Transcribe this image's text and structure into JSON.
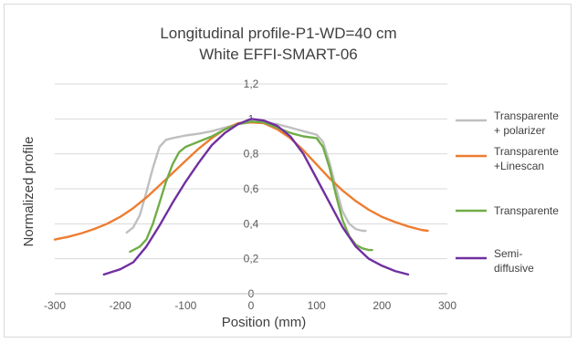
{
  "chart_data": {
    "type": "line",
    "title": [
      "Longitudinal profile-P1-WD=40 cm",
      "White EFFI-SMART-06"
    ],
    "xlabel": "Position (mm)",
    "ylabel": "Normalized profile",
    "xlim": [
      -300,
      300
    ],
    "ylim": [
      0,
      1.2
    ],
    "xticks": [
      -300,
      -200,
      -100,
      0,
      100,
      200,
      300
    ],
    "xtick_labels": [
      "-300",
      "-200",
      "-100",
      "0",
      "100",
      "200",
      "300"
    ],
    "yticks": [
      0,
      0.2,
      0.4,
      0.6,
      0.8,
      1,
      1.2
    ],
    "ytick_labels": [
      "0",
      "0,2",
      "0,4",
      "0,6",
      "0,8",
      "1",
      "1,2"
    ],
    "grid": "horizontal",
    "legend_position": "right",
    "series": [
      {
        "name": "Transparente + polarizer",
        "legend_lines": [
          "Transparente",
          "+ polarizer"
        ],
        "color": "#bfbfbf",
        "x": [
          -190,
          -180,
          -170,
          -160,
          -150,
          -140,
          -130,
          -120,
          -100,
          -80,
          -60,
          -40,
          -20,
          0,
          20,
          40,
          60,
          80,
          100,
          110,
          120,
          130,
          140,
          150,
          160,
          170,
          175
        ],
        "y": [
          0.35,
          0.38,
          0.45,
          0.58,
          0.72,
          0.84,
          0.88,
          0.89,
          0.905,
          0.915,
          0.93,
          0.95,
          0.97,
          0.98,
          0.98,
          0.97,
          0.95,
          0.93,
          0.91,
          0.87,
          0.75,
          0.6,
          0.47,
          0.4,
          0.37,
          0.36,
          0.36
        ]
      },
      {
        "name": "Transparente +Linescan",
        "legend_lines": [
          "Transparente",
          "+Linescan"
        ],
        "color": "#ed7d31",
        "x": [
          -300,
          -280,
          -260,
          -240,
          -220,
          -200,
          -180,
          -160,
          -140,
          -120,
          -100,
          -80,
          -60,
          -40,
          -20,
          0,
          20,
          40,
          60,
          80,
          100,
          120,
          140,
          160,
          180,
          200,
          220,
          240,
          260,
          270
        ],
        "y": [
          0.31,
          0.325,
          0.345,
          0.37,
          0.4,
          0.44,
          0.49,
          0.55,
          0.62,
          0.69,
          0.76,
          0.83,
          0.89,
          0.94,
          0.975,
          0.98,
          0.975,
          0.94,
          0.89,
          0.82,
          0.74,
          0.66,
          0.59,
          0.53,
          0.48,
          0.44,
          0.41,
          0.385,
          0.365,
          0.36
        ]
      },
      {
        "name": "Transparente",
        "legend_lines": [
          "Transparente"
        ],
        "color": "#70ad47",
        "x": [
          -185,
          -170,
          -160,
          -150,
          -140,
          -130,
          -120,
          -110,
          -100,
          -80,
          -60,
          -40,
          -20,
          0,
          20,
          40,
          60,
          80,
          100,
          110,
          120,
          130,
          140,
          150,
          160,
          170,
          180,
          185
        ],
        "y": [
          0.24,
          0.27,
          0.31,
          0.4,
          0.52,
          0.64,
          0.74,
          0.81,
          0.84,
          0.87,
          0.9,
          0.94,
          0.97,
          0.985,
          0.98,
          0.95,
          0.92,
          0.9,
          0.89,
          0.84,
          0.72,
          0.56,
          0.42,
          0.33,
          0.28,
          0.26,
          0.25,
          0.25
        ]
      },
      {
        "name": "Semi-diffusive",
        "legend_lines": [
          "Semi-",
          "diffusive"
        ],
        "color": "#7030a0",
        "x": [
          -225,
          -200,
          -180,
          -160,
          -140,
          -120,
          -100,
          -80,
          -60,
          -40,
          -20,
          0,
          20,
          40,
          60,
          80,
          100,
          120,
          140,
          160,
          180,
          200,
          220,
          240
        ],
        "y": [
          0.11,
          0.14,
          0.18,
          0.27,
          0.39,
          0.52,
          0.64,
          0.75,
          0.85,
          0.92,
          0.97,
          1.0,
          0.99,
          0.96,
          0.9,
          0.8,
          0.66,
          0.52,
          0.38,
          0.27,
          0.2,
          0.16,
          0.13,
          0.11
        ]
      }
    ]
  }
}
